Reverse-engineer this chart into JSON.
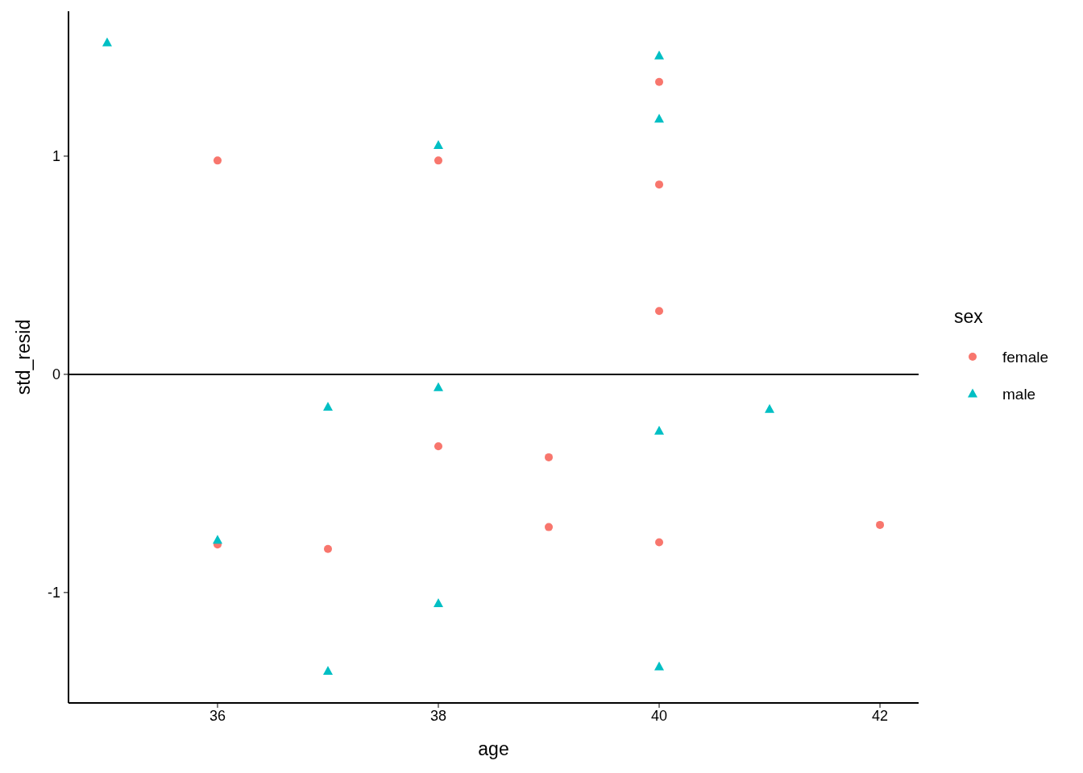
{
  "chart_data": {
    "type": "scatter",
    "xlabel": "age",
    "ylabel": "std_resid",
    "legend_title": "sex",
    "xlim": [
      34.65,
      42.35
    ],
    "ylim": [
      -1.506,
      1.664
    ],
    "xticks": [
      36,
      38,
      40,
      42
    ],
    "yticks": [
      -1,
      0,
      1
    ],
    "grid": false,
    "legend": "right",
    "ref_lines": [
      {
        "axis": "y",
        "value": 0,
        "color": "#000000",
        "line_style": "solid"
      }
    ],
    "series": [
      {
        "name": "female",
        "color": "#f8766d",
        "marker": "circle",
        "x": [
          36,
          36,
          37,
          38,
          38,
          39,
          39,
          40,
          40,
          40,
          40,
          42
        ],
        "values": [
          0.98,
          -0.78,
          -0.8,
          0.98,
          -0.33,
          -0.38,
          -0.7,
          1.34,
          0.87,
          0.29,
          -0.77,
          -0.69
        ]
      },
      {
        "name": "male",
        "color": "#00bfc4",
        "marker": "triangle",
        "x": [
          35,
          36,
          37,
          37,
          38,
          38,
          38,
          40,
          40,
          40,
          40,
          41
        ],
        "values": [
          1.52,
          -0.76,
          -0.15,
          -1.36,
          1.05,
          -0.06,
          -1.05,
          1.46,
          1.17,
          -0.26,
          -1.34,
          -0.16
        ]
      }
    ]
  }
}
